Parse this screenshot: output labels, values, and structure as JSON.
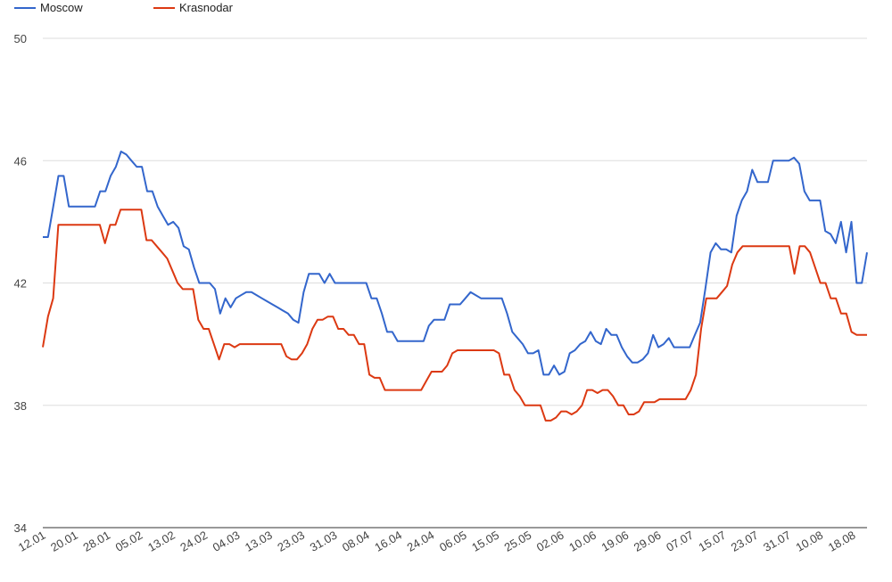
{
  "chart_data": {
    "type": "line",
    "title": "",
    "xlabel": "",
    "ylabel": "",
    "ylim": [
      34,
      50
    ],
    "yticks": [
      34,
      38,
      42,
      46,
      50
    ],
    "grid": true,
    "legend_position": "top-left",
    "x_ticks": [
      "12.01",
      "20.01",
      "28.01",
      "05.02",
      "13.02",
      "24.02",
      "04.03",
      "13.03",
      "23.03",
      "31.03",
      "08.04",
      "16.04",
      "24.04",
      "06.05",
      "15.05",
      "25.05",
      "02.06",
      "10.06",
      "19.06",
      "29.06",
      "07.07",
      "15.07",
      "23.07",
      "31.07",
      "10.08",
      "18.08"
    ],
    "series": [
      {
        "name": "Moscow",
        "color": "#3366cc",
        "values": [
          43.5,
          43.5,
          44.5,
          45.5,
          45.5,
          44.5,
          44.5,
          44.5,
          44.5,
          44.5,
          44.5,
          45.0,
          45.0,
          45.5,
          45.8,
          46.3,
          46.2,
          46.0,
          45.8,
          45.8,
          45.0,
          45.0,
          44.5,
          44.2,
          43.9,
          44.0,
          43.8,
          43.2,
          43.1,
          42.5,
          42.0,
          42.0,
          42.0,
          41.8,
          41.0,
          41.5,
          41.2,
          41.5,
          41.6,
          41.7,
          41.7,
          41.6,
          41.5,
          41.4,
          41.3,
          41.2,
          41.1,
          41.0,
          40.8,
          40.7,
          41.7,
          42.3,
          42.3,
          42.3,
          42.0,
          42.3,
          42.0,
          42.0,
          42.0,
          42.0,
          42.0,
          42.0,
          42.0,
          41.5,
          41.5,
          41.0,
          40.4,
          40.4,
          40.1,
          40.1,
          40.1,
          40.1,
          40.1,
          40.1,
          40.6,
          40.8,
          40.8,
          40.8,
          41.3,
          41.3,
          41.3,
          41.5,
          41.7,
          41.6,
          41.5,
          41.5,
          41.5,
          41.5,
          41.5,
          41.0,
          40.4,
          40.2,
          40.0,
          39.7,
          39.7,
          39.8,
          39.0,
          39.0,
          39.3,
          39.0,
          39.1,
          39.7,
          39.8,
          40.0,
          40.1,
          40.4,
          40.1,
          40.0,
          40.5,
          40.3,
          40.3,
          39.9,
          39.6,
          39.4,
          39.4,
          39.5,
          39.7,
          40.3,
          39.9,
          40.0,
          40.2,
          39.9,
          39.9,
          39.9,
          39.9,
          40.3,
          40.7,
          41.8,
          43.0,
          43.3,
          43.1,
          43.1,
          43.0,
          44.2,
          44.7,
          45.0,
          45.7,
          45.3,
          45.3,
          45.3,
          46.0,
          46.0,
          46.0,
          46.0,
          46.1,
          45.9,
          45.0,
          44.7,
          44.7,
          44.7,
          43.7,
          43.6,
          43.3,
          44.0,
          43.0,
          44.0,
          42.0,
          42.0,
          43.0
        ]
      },
      {
        "name": "Krasnodar",
        "color": "#dc3912",
        "values": [
          39.9,
          40.9,
          41.5,
          43.9,
          43.9,
          43.9,
          43.9,
          43.9,
          43.9,
          43.9,
          43.9,
          43.9,
          43.3,
          43.9,
          43.9,
          44.4,
          44.4,
          44.4,
          44.4,
          44.4,
          43.4,
          43.4,
          43.2,
          43.0,
          42.8,
          42.4,
          42.0,
          41.8,
          41.8,
          41.8,
          40.8,
          40.5,
          40.5,
          40.0,
          39.5,
          40.0,
          40.0,
          39.9,
          40.0,
          40.0,
          40.0,
          40.0,
          40.0,
          40.0,
          40.0,
          40.0,
          40.0,
          39.6,
          39.5,
          39.5,
          39.7,
          40.0,
          40.5,
          40.8,
          40.8,
          40.9,
          40.9,
          40.5,
          40.5,
          40.3,
          40.3,
          40.0,
          40.0,
          39.0,
          38.9,
          38.9,
          38.5,
          38.5,
          38.5,
          38.5,
          38.5,
          38.5,
          38.5,
          38.5,
          38.8,
          39.1,
          39.1,
          39.1,
          39.3,
          39.7,
          39.8,
          39.8,
          39.8,
          39.8,
          39.8,
          39.8,
          39.8,
          39.8,
          39.7,
          39.0,
          39.0,
          38.5,
          38.3,
          38.0,
          38.0,
          38.0,
          38.0,
          37.5,
          37.5,
          37.6,
          37.8,
          37.8,
          37.7,
          37.8,
          38.0,
          38.5,
          38.5,
          38.4,
          38.5,
          38.5,
          38.3,
          38.0,
          38.0,
          37.7,
          37.7,
          37.8,
          38.1,
          38.1,
          38.1,
          38.2,
          38.2,
          38.2,
          38.2,
          38.2,
          38.2,
          38.5,
          39.0,
          40.5,
          41.5,
          41.5,
          41.5,
          41.7,
          41.9,
          42.6,
          43.0,
          43.2,
          43.2,
          43.2,
          43.2,
          43.2,
          43.2,
          43.2,
          43.2,
          43.2,
          43.2,
          42.3,
          43.2,
          43.2,
          43.0,
          42.5,
          42.0,
          42.0,
          41.5,
          41.5,
          41.0,
          41.0,
          40.4,
          40.3,
          40.3,
          40.3
        ]
      }
    ]
  }
}
